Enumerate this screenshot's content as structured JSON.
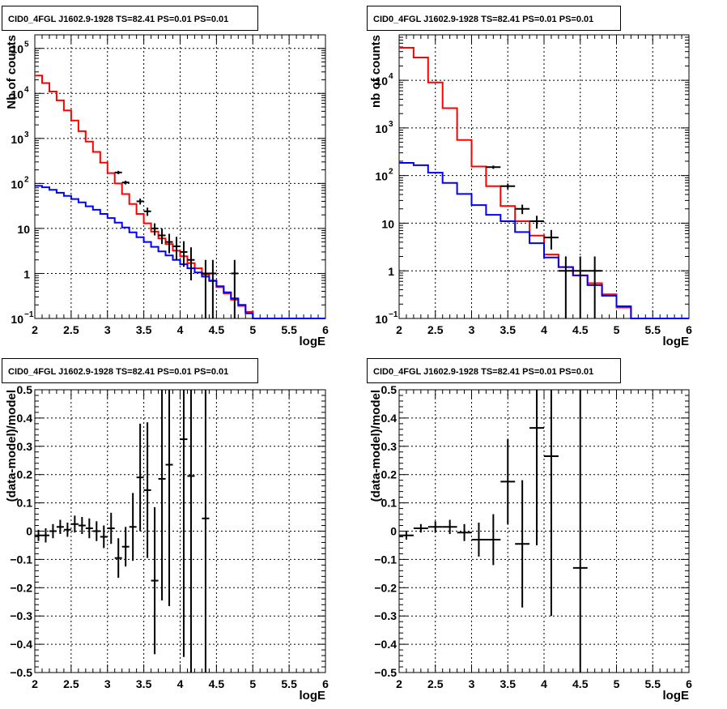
{
  "colors": {
    "model": "#ff0000",
    "background": "#0000ff",
    "data": "#000000",
    "grid": "#000000",
    "frame": "#000000"
  },
  "chart_data": [
    {
      "type": "step-histogram",
      "title": "CID0_4FGL J1602.9-1928 TS=82.41 PS=0.01 PS=0.01",
      "xlabel": "logE",
      "ylabel": "Nb of counts",
      "xlim": [
        2,
        6
      ],
      "ylim": [
        0.1,
        200000
      ],
      "yscale": "log",
      "grid": true,
      "x_ticks": [
        "2",
        "2.5",
        "3",
        "3.5",
        "4",
        "4.5",
        "5",
        "5.5",
        "6"
      ],
      "y_ticks": [
        {
          "v": 0.1,
          "base": "10",
          "sup": "−1"
        },
        {
          "v": 1,
          "base": "1",
          "sup": ""
        },
        {
          "v": 10,
          "base": "10",
          "sup": ""
        },
        {
          "v": 100,
          "base": "10",
          "sup": "2"
        },
        {
          "v": 1000,
          "base": "10",
          "sup": "3"
        },
        {
          "v": 10000,
          "base": "10",
          "sup": "4"
        },
        {
          "v": 100000,
          "base": "10",
          "sup": "5"
        }
      ],
      "bin_edges": [
        2.0,
        2.1,
        2.2,
        2.3,
        2.4,
        2.5,
        2.6,
        2.7,
        2.8,
        2.9,
        3.0,
        3.1,
        3.2,
        3.3,
        3.4,
        3.5,
        3.6,
        3.7,
        3.8,
        3.9,
        4.0,
        4.1,
        4.2,
        4.3,
        4.4,
        4.5,
        4.6,
        4.7,
        4.8,
        4.9,
        5.0,
        5.1,
        5.2,
        5.3,
        5.4,
        5.5,
        5.6,
        5.7,
        5.8,
        5.9,
        6.0
      ],
      "series": [
        {
          "name": "model",
          "color": "#ff0000",
          "values": [
            25000,
            17000,
            11000,
            7000,
            4200,
            2500,
            1450,
            850,
            500,
            290,
            170,
            100,
            58,
            35,
            21,
            13,
            8.5,
            6,
            4.5,
            3.2,
            2.4,
            1.7,
            1.3,
            0.95,
            0.7,
            0.5,
            0.36,
            0.26,
            0.19,
            0.14,
            0.1,
            0.1,
            0.1,
            0.1,
            0.1,
            0.1,
            0.1,
            0.1,
            0.1,
            0.1
          ]
        },
        {
          "name": "background",
          "color": "#0000ff",
          "values": [
            88,
            82,
            72,
            62,
            53,
            45,
            38,
            31,
            26,
            21,
            17,
            13.5,
            10.5,
            8.2,
            6.4,
            5,
            3.9,
            3.1,
            2.5,
            2,
            1.6,
            1.3,
            1.05,
            0.85,
            0.68,
            0.52,
            0.38,
            0.28,
            0.2,
            0.13,
            0.1,
            0.1,
            0.1,
            0.1,
            0.1,
            0.1,
            0.1,
            0.1,
            0.1,
            0.1
          ]
        }
      ],
      "data_points": [
        {
          "x": 3.15,
          "y": 175,
          "lo": 160,
          "hi": 190
        },
        {
          "x": 3.25,
          "y": 105,
          "lo": 95,
          "hi": 115
        },
        {
          "x": 3.45,
          "y": 40,
          "lo": 34,
          "hi": 46
        },
        {
          "x": 3.55,
          "y": 24,
          "lo": 19,
          "hi": 29
        },
        {
          "x": 3.65,
          "y": 10,
          "lo": 7,
          "hi": 13
        },
        {
          "x": 3.75,
          "y": 7,
          "lo": 4.5,
          "hi": 10
        },
        {
          "x": 3.85,
          "y": 5,
          "lo": 2.8,
          "hi": 7.6
        },
        {
          "x": 3.95,
          "y": 4,
          "lo": 2,
          "hi": 6.5
        },
        {
          "x": 4.05,
          "y": 3,
          "lo": 1.4,
          "hi": 5.2
        },
        {
          "x": 4.15,
          "y": 2,
          "lo": 0.7,
          "hi": 3.8
        },
        {
          "x": 4.35,
          "y": 1,
          "lo": 0.1,
          "hi": 2
        },
        {
          "x": 4.45,
          "y": 1,
          "lo": 0.1,
          "hi": 2
        },
        {
          "x": 4.75,
          "y": 1,
          "lo": 0.1,
          "hi": 2
        }
      ]
    },
    {
      "type": "step-histogram",
      "title": "CID0_4FGL J1602.9-1928 TS=82.41 PS=0.01 PS=0.01",
      "xlabel": "logE",
      "ylabel": "nb of counts",
      "xlim": [
        2,
        6
      ],
      "ylim": [
        0.1,
        90000
      ],
      "yscale": "log",
      "grid": true,
      "x_ticks": [
        "2",
        "2.5",
        "3",
        "3.5",
        "4",
        "4.5",
        "5",
        "5.5",
        "6"
      ],
      "y_ticks": [
        {
          "v": 0.1,
          "base": "10",
          "sup": "−1"
        },
        {
          "v": 1,
          "base": "1",
          "sup": ""
        },
        {
          "v": 10,
          "base": "10",
          "sup": ""
        },
        {
          "v": 100,
          "base": "10",
          "sup": "2"
        },
        {
          "v": 1000,
          "base": "10",
          "sup": "3"
        },
        {
          "v": 10000,
          "base": "10",
          "sup": "4"
        }
      ],
      "bin_edges": [
        2.0,
        2.2,
        2.4,
        2.6,
        2.8,
        3.0,
        3.2,
        3.4,
        3.6,
        3.8,
        4.0,
        4.2,
        4.4,
        4.6,
        4.8,
        5.0,
        5.2,
        5.4,
        5.6,
        5.8,
        6.0
      ],
      "series": [
        {
          "name": "model",
          "color": "#ff0000",
          "values": [
            48000,
            30000,
            9000,
            2600,
            560,
            155,
            60,
            23,
            11,
            5.5,
            2.2,
            1.2,
            0.8,
            0.55,
            0.32,
            0.17,
            0.1,
            0.1,
            0.1,
            0.1
          ]
        },
        {
          "name": "background",
          "color": "#0000ff",
          "values": [
            185,
            165,
            115,
            70,
            41,
            24,
            15,
            11,
            6.5,
            3.8,
            1.9,
            1.2,
            0.8,
            0.5,
            0.3,
            0.18,
            0.1,
            0.1,
            0.1,
            0.1
          ]
        }
      ],
      "data_points": [
        {
          "x": 3.3,
          "y": 150,
          "lo": 138,
          "hi": 162
        },
        {
          "x": 3.5,
          "y": 60,
          "lo": 52,
          "hi": 68
        },
        {
          "x": 3.7,
          "y": 20,
          "lo": 15.5,
          "hi": 24.5
        },
        {
          "x": 3.9,
          "y": 11,
          "lo": 7.7,
          "hi": 14.3
        },
        {
          "x": 4.1,
          "y": 5,
          "lo": 2.8,
          "hi": 7.2
        },
        {
          "x": 4.3,
          "y": 1,
          "lo": 0.1,
          "hi": 2
        },
        {
          "x": 4.5,
          "y": 1,
          "lo": 0.1,
          "hi": 2
        },
        {
          "x": 4.7,
          "y": 1,
          "lo": 0.1,
          "hi": 2
        }
      ]
    },
    {
      "type": "errorbar",
      "title": "CID0_4FGL J1602.9-1928 TS=82.41 PS=0.01 PS=0.01",
      "xlabel": "logE",
      "ylabel": "(data-model)/model",
      "xlim": [
        2,
        6
      ],
      "ylim": [
        -0.5,
        0.5
      ],
      "grid": true,
      "x_ticks": [
        "2",
        "2.5",
        "3",
        "3.5",
        "4",
        "4.5",
        "5",
        "5.5",
        "6"
      ],
      "y_ticks": [
        "−0.5",
        "−0.4",
        "−0.3",
        "−0.2",
        "−0.1",
        "0",
        "0.1",
        "0.2",
        "0.3",
        "0.4",
        "0.5"
      ],
      "x_half_width": 0.05,
      "points": [
        {
          "x": 2.05,
          "y": -0.015,
          "err": 0.02
        },
        {
          "x": 2.15,
          "y": -0.015,
          "err": 0.025
        },
        {
          "x": 2.25,
          "y": 0.0,
          "err": 0.025
        },
        {
          "x": 2.35,
          "y": 0.015,
          "err": 0.025
        },
        {
          "x": 2.45,
          "y": 0.005,
          "err": 0.025
        },
        {
          "x": 2.55,
          "y": 0.025,
          "err": 0.03
        },
        {
          "x": 2.65,
          "y": 0.02,
          "err": 0.03
        },
        {
          "x": 2.75,
          "y": 0.01,
          "err": 0.035
        },
        {
          "x": 2.85,
          "y": 0.0,
          "err": 0.035
        },
        {
          "x": 2.95,
          "y": -0.02,
          "err": 0.04
        },
        {
          "x": 3.05,
          "y": 0.01,
          "err": 0.055
        },
        {
          "x": 3.15,
          "y": -0.095,
          "err": 0.07
        },
        {
          "x": 3.25,
          "y": -0.055,
          "err": 0.07
        },
        {
          "x": 3.35,
          "y": 0.015,
          "err": 0.12
        },
        {
          "x": 3.45,
          "y": 0.19,
          "err": 0.19
        },
        {
          "x": 3.55,
          "y": 0.145,
          "err": 0.24
        },
        {
          "x": 3.65,
          "y": -0.175,
          "err": 0.26
        },
        {
          "x": 3.75,
          "y": 0.185,
          "err": 0.43
        },
        {
          "x": 3.85,
          "y": 0.235,
          "err": 0.5
        },
        {
          "x": 4.05,
          "y": 0.325,
          "err": 0.77
        },
        {
          "x": 4.15,
          "y": 0.195,
          "err": 0.99
        },
        {
          "x": 4.35,
          "y": 0.045,
          "err": 1.0
        }
      ]
    },
    {
      "type": "errorbar",
      "title": "CID0_4FGL J1602.9-1928 TS=82.41 PS=0.01 PS=0.01",
      "xlabel": "logE",
      "ylabel": "(data-model)/model",
      "xlim": [
        2,
        6
      ],
      "ylim": [
        -0.5,
        0.5
      ],
      "grid": true,
      "x_ticks": [
        "2",
        "2.5",
        "3",
        "3.5",
        "4",
        "4.5",
        "5",
        "5.5",
        "6"
      ],
      "y_ticks": [
        "−0.5",
        "−0.4",
        "−0.3",
        "−0.2",
        "−0.1",
        "0",
        "0.1",
        "0.2",
        "0.3",
        "0.4",
        "0.5"
      ],
      "x_half_width": 0.1,
      "points": [
        {
          "x": 2.1,
          "y": -0.015,
          "err": 0.015
        },
        {
          "x": 2.3,
          "y": 0.01,
          "err": 0.015
        },
        {
          "x": 2.5,
          "y": 0.015,
          "err": 0.02
        },
        {
          "x": 2.7,
          "y": 0.015,
          "err": 0.025
        },
        {
          "x": 2.9,
          "y": -0.005,
          "err": 0.03
        },
        {
          "x": 3.1,
          "y": -0.03,
          "err": 0.06
        },
        {
          "x": 3.3,
          "y": -0.03,
          "err": 0.09
        },
        {
          "x": 3.5,
          "y": 0.175,
          "err": 0.15
        },
        {
          "x": 3.7,
          "y": -0.045,
          "err": 0.225
        },
        {
          "x": 3.9,
          "y": 0.365,
          "err": 0.415
        },
        {
          "x": 4.1,
          "y": 0.265,
          "err": 0.565
        },
        {
          "x": 4.5,
          "y": -0.13,
          "err": 0.87
        }
      ]
    }
  ]
}
